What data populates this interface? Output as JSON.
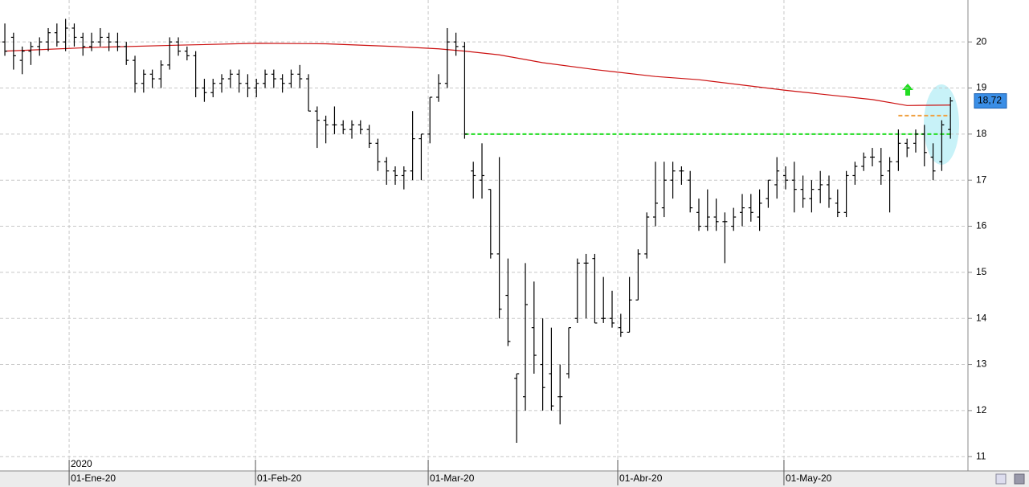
{
  "chart_data": {
    "type": "ohlc",
    "x": [
      0,
      1,
      2,
      3,
      4,
      5,
      6,
      7,
      8,
      9,
      10,
      11,
      12,
      13,
      14,
      15,
      16,
      17,
      18,
      19,
      20,
      21,
      22,
      23,
      24,
      25,
      26,
      27,
      28,
      29,
      30,
      31,
      32,
      33,
      34,
      35,
      36,
      37,
      38,
      39,
      40,
      41,
      42,
      43,
      44,
      45,
      46,
      47,
      48,
      49,
      50,
      51,
      52,
      53,
      54,
      55,
      56,
      57,
      58,
      59,
      60,
      61,
      62,
      63,
      64,
      65,
      66,
      67,
      68,
      69,
      70,
      71,
      72,
      73,
      74,
      75,
      76,
      77,
      78,
      79,
      80,
      81,
      82,
      83,
      84,
      85,
      86,
      87,
      88,
      89,
      90,
      91,
      92,
      93,
      94,
      95,
      96,
      97,
      98,
      99,
      100,
      101,
      102,
      103,
      104,
      105,
      106,
      107,
      108,
      109
    ],
    "open": [
      20.0,
      20.1,
      19.6,
      19.8,
      19.9,
      20.0,
      20.2,
      20.0,
      20.3,
      20.1,
      19.9,
      20.0,
      20.1,
      20.0,
      19.9,
      19.6,
      19.1,
      19.3,
      19.2,
      19.5,
      20.0,
      19.8,
      19.7,
      19.0,
      18.9,
      19.1,
      19.2,
      19.3,
      19.1,
      19.0,
      19.1,
      19.3,
      19.2,
      19.1,
      19.3,
      19.2,
      18.5,
      18.3,
      18.2,
      18.2,
      18.1,
      18.2,
      18.1,
      17.8,
      17.4,
      17.2,
      17.1,
      17.2,
      17.9,
      18.0,
      18.8,
      19.1,
      20.0,
      19.9,
      17.2,
      17.0,
      16.8,
      15.4,
      14.5,
      12.7,
      12.3,
      13.8,
      13.0,
      12.8,
      12.3,
      12.8,
      14.0,
      15.2,
      15.3,
      14.0,
      14.0,
      13.8,
      13.7,
      14.4,
      15.4,
      16.2,
      16.4,
      17.0,
      17.2,
      17.0,
      16.3,
      16.0,
      16.2,
      16.1,
      16.0,
      16.3,
      16.4,
      16.2,
      16.6,
      16.9,
      17.1,
      17.0,
      16.8,
      16.6,
      16.8,
      16.9,
      16.5,
      16.3,
      17.1,
      17.3,
      17.5,
      17.4,
      17.2,
      17.4,
      17.8,
      17.8,
      18.0,
      17.5,
      17.4,
      18.1
    ],
    "high": [
      20.4,
      20.2,
      19.9,
      20.0,
      20.1,
      20.3,
      20.4,
      20.5,
      20.4,
      20.2,
      20.2,
      20.3,
      20.2,
      20.2,
      20.0,
      19.7,
      19.4,
      19.4,
      19.6,
      20.1,
      20.1,
      19.9,
      19.8,
      19.2,
      19.2,
      19.3,
      19.4,
      19.4,
      19.3,
      19.2,
      19.4,
      19.4,
      19.3,
      19.4,
      19.5,
      19.3,
      18.6,
      18.4,
      18.6,
      18.3,
      18.3,
      18.3,
      18.2,
      17.9,
      17.5,
      17.3,
      17.3,
      18.5,
      18.0,
      18.8,
      19.3,
      20.3,
      20.2,
      20.0,
      17.4,
      17.8,
      16.8,
      17.5,
      15.3,
      12.8,
      15.2,
      14.8,
      14.0,
      13.8,
      13.0,
      13.8,
      15.3,
      15.4,
      15.4,
      14.9,
      14.6,
      14.1,
      14.9,
      15.5,
      16.3,
      17.4,
      17.4,
      17.4,
      17.3,
      17.2,
      16.6,
      16.8,
      16.6,
      16.3,
      16.4,
      16.7,
      16.7,
      16.8,
      17.0,
      17.5,
      17.3,
      17.4,
      17.1,
      17.0,
      17.2,
      17.1,
      16.8,
      17.2,
      17.4,
      17.6,
      17.7,
      17.7,
      17.5,
      18.1,
      17.9,
      18.1,
      18.2,
      17.8,
      18.3,
      18.8
    ],
    "low": [
      19.7,
      19.4,
      19.3,
      19.5,
      19.7,
      19.8,
      19.9,
      19.8,
      19.9,
      19.7,
      19.8,
      19.9,
      19.8,
      19.8,
      19.5,
      18.9,
      18.9,
      19.0,
      19.0,
      19.4,
      19.7,
      19.6,
      18.8,
      18.7,
      18.8,
      18.9,
      19.0,
      18.9,
      18.8,
      18.8,
      19.0,
      19.0,
      18.9,
      19.0,
      19.0,
      18.5,
      17.7,
      17.8,
      18.0,
      18.0,
      17.9,
      18.0,
      17.7,
      17.2,
      16.9,
      16.9,
      16.8,
      17.0,
      17.0,
      17.8,
      18.7,
      19.0,
      19.7,
      17.9,
      16.6,
      16.6,
      15.3,
      14.0,
      13.4,
      11.3,
      12.0,
      12.8,
      12.0,
      12.0,
      11.7,
      12.7,
      13.9,
      14.0,
      13.9,
      13.9,
      13.8,
      13.6,
      13.7,
      14.4,
      15.3,
      16.0,
      16.2,
      16.6,
      16.9,
      16.3,
      15.9,
      15.9,
      15.9,
      15.2,
      15.9,
      16.0,
      16.1,
      15.9,
      16.4,
      16.6,
      16.8,
      16.3,
      16.4,
      16.3,
      16.5,
      16.4,
      16.2,
      16.2,
      16.9,
      17.2,
      17.3,
      16.9,
      16.3,
      17.2,
      17.5,
      17.6,
      17.3,
      17.0,
      17.2,
      17.9
    ],
    "close": [
      19.8,
      19.7,
      19.8,
      19.9,
      20.0,
      20.2,
      20.0,
      20.3,
      20.1,
      19.9,
      20.0,
      20.1,
      20.0,
      19.9,
      19.6,
      19.1,
      19.3,
      19.2,
      19.5,
      20.0,
      19.8,
      19.7,
      19.0,
      18.9,
      19.1,
      19.2,
      19.3,
      19.1,
      19.0,
      19.1,
      19.3,
      19.2,
      19.1,
      19.3,
      19.2,
      18.5,
      18.3,
      18.2,
      18.2,
      18.1,
      18.2,
      18.1,
      17.8,
      17.4,
      17.2,
      17.1,
      17.2,
      17.9,
      18.0,
      18.8,
      19.1,
      20.0,
      19.9,
      18.0,
      17.1,
      17.1,
      15.4,
      14.2,
      13.5,
      12.8,
      14.3,
      13.2,
      12.5,
      12.1,
      12.3,
      13.8,
      15.2,
      15.2,
      13.9,
      14.0,
      13.9,
      13.7,
      14.4,
      15.4,
      16.2,
      16.5,
      17.0,
      17.2,
      17.2,
      16.4,
      16.0,
      16.2,
      16.1,
      16.1,
      16.2,
      16.4,
      16.3,
      16.5,
      17.0,
      17.2,
      17.0,
      16.8,
      16.6,
      16.8,
      16.9,
      16.6,
      16.3,
      17.1,
      17.3,
      17.5,
      17.5,
      17.1,
      17.4,
      17.8,
      17.7,
      18.0,
      17.6,
      17.2,
      18.2,
      18.72
    ],
    "bar_color": "#000000",
    "last_value_label": "18,72",
    "moving_average": {
      "color": "#cc1111",
      "x": [
        0,
        10,
        20,
        29,
        37,
        45,
        50,
        53,
        57,
        62,
        68,
        75,
        80,
        90,
        100,
        104,
        109
      ],
      "values": [
        19.8,
        19.88,
        19.93,
        19.97,
        19.96,
        19.9,
        19.85,
        19.8,
        19.72,
        19.55,
        19.4,
        19.25,
        19.18,
        18.95,
        18.75,
        18.62,
        18.63
      ]
    },
    "support_line": {
      "value": 18.0,
      "from_x": 53,
      "color": "#22dd22"
    },
    "target_line": {
      "value": 18.4,
      "from_x": 103,
      "color": "#f0a040"
    },
    "year_label": "2020",
    "xlim": [
      -0.56,
      111.02
    ],
    "xticks": [
      {
        "value": 7.41,
        "label": "01-Ene-20"
      },
      {
        "value": 28.89,
        "label": "01-Feb-20"
      },
      {
        "value": 48.8,
        "label": "01-Mar-20"
      },
      {
        "value": 70.65,
        "label": "01-Abr-20"
      },
      {
        "value": 89.81,
        "label": "01-May-20"
      }
    ],
    "ylim": [
      10.69,
      20.91
    ],
    "yticks": [
      11,
      12,
      13,
      14,
      15,
      16,
      17,
      18,
      19,
      20
    ],
    "grid": true
  }
}
